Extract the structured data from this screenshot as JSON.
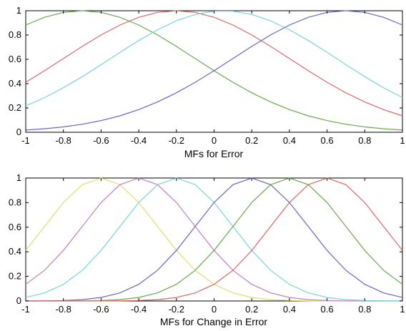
{
  "chart_data": [
    {
      "type": "line",
      "xlabel": "MFs for Error",
      "ylabel": "",
      "title": "",
      "xlim": [
        -1,
        1
      ],
      "ylim": [
        0,
        1
      ],
      "grid": false,
      "xticks": [
        "-1",
        "-0.8",
        "-0.6",
        "-0.4",
        "-0.2",
        "0",
        "0.2",
        "0.4",
        "0.6",
        "0.8",
        "1"
      ],
      "yticks": [
        "0",
        "0.2",
        "0.4",
        "0.6",
        "0.8",
        "1"
      ],
      "series": [
        {
          "color": "#6aa84f",
          "center": -0.7,
          "width": 0.6
        },
        {
          "color": "#e06666",
          "center": -0.2,
          "width": 0.6
        },
        {
          "color": "#76d7d7",
          "center": 0.05,
          "width": 0.6
        },
        {
          "color": "#6666cc",
          "center": 0.7,
          "width": 0.6
        }
      ]
    },
    {
      "type": "line",
      "xlabel": "MFs for Change in Error",
      "ylabel": "",
      "title": "",
      "xlim": [
        -1,
        1
      ],
      "ylim": [
        0,
        1
      ],
      "grid": false,
      "xticks": [
        "-1",
        "-0.8",
        "-0.6",
        "-0.4",
        "-0.2",
        "0",
        "0.2",
        "0.4",
        "0.6",
        "0.8",
        "1"
      ],
      "yticks": [
        "0",
        "0.2",
        "0.4",
        "0.6",
        "0.8",
        "1"
      ],
      "series": [
        {
          "color": "#e0e070",
          "center": -0.6,
          "width": 0.3
        },
        {
          "color": "#c27ec2",
          "center": -0.4,
          "width": 0.3
        },
        {
          "color": "#76d7d7",
          "center": -0.2,
          "width": 0.3
        },
        {
          "color": "#6666cc",
          "center": 0.2,
          "width": 0.3
        },
        {
          "color": "#6aa84f",
          "center": 0.4,
          "width": 0.3
        },
        {
          "color": "#e06666",
          "center": 0.6,
          "width": 0.3
        }
      ]
    }
  ]
}
